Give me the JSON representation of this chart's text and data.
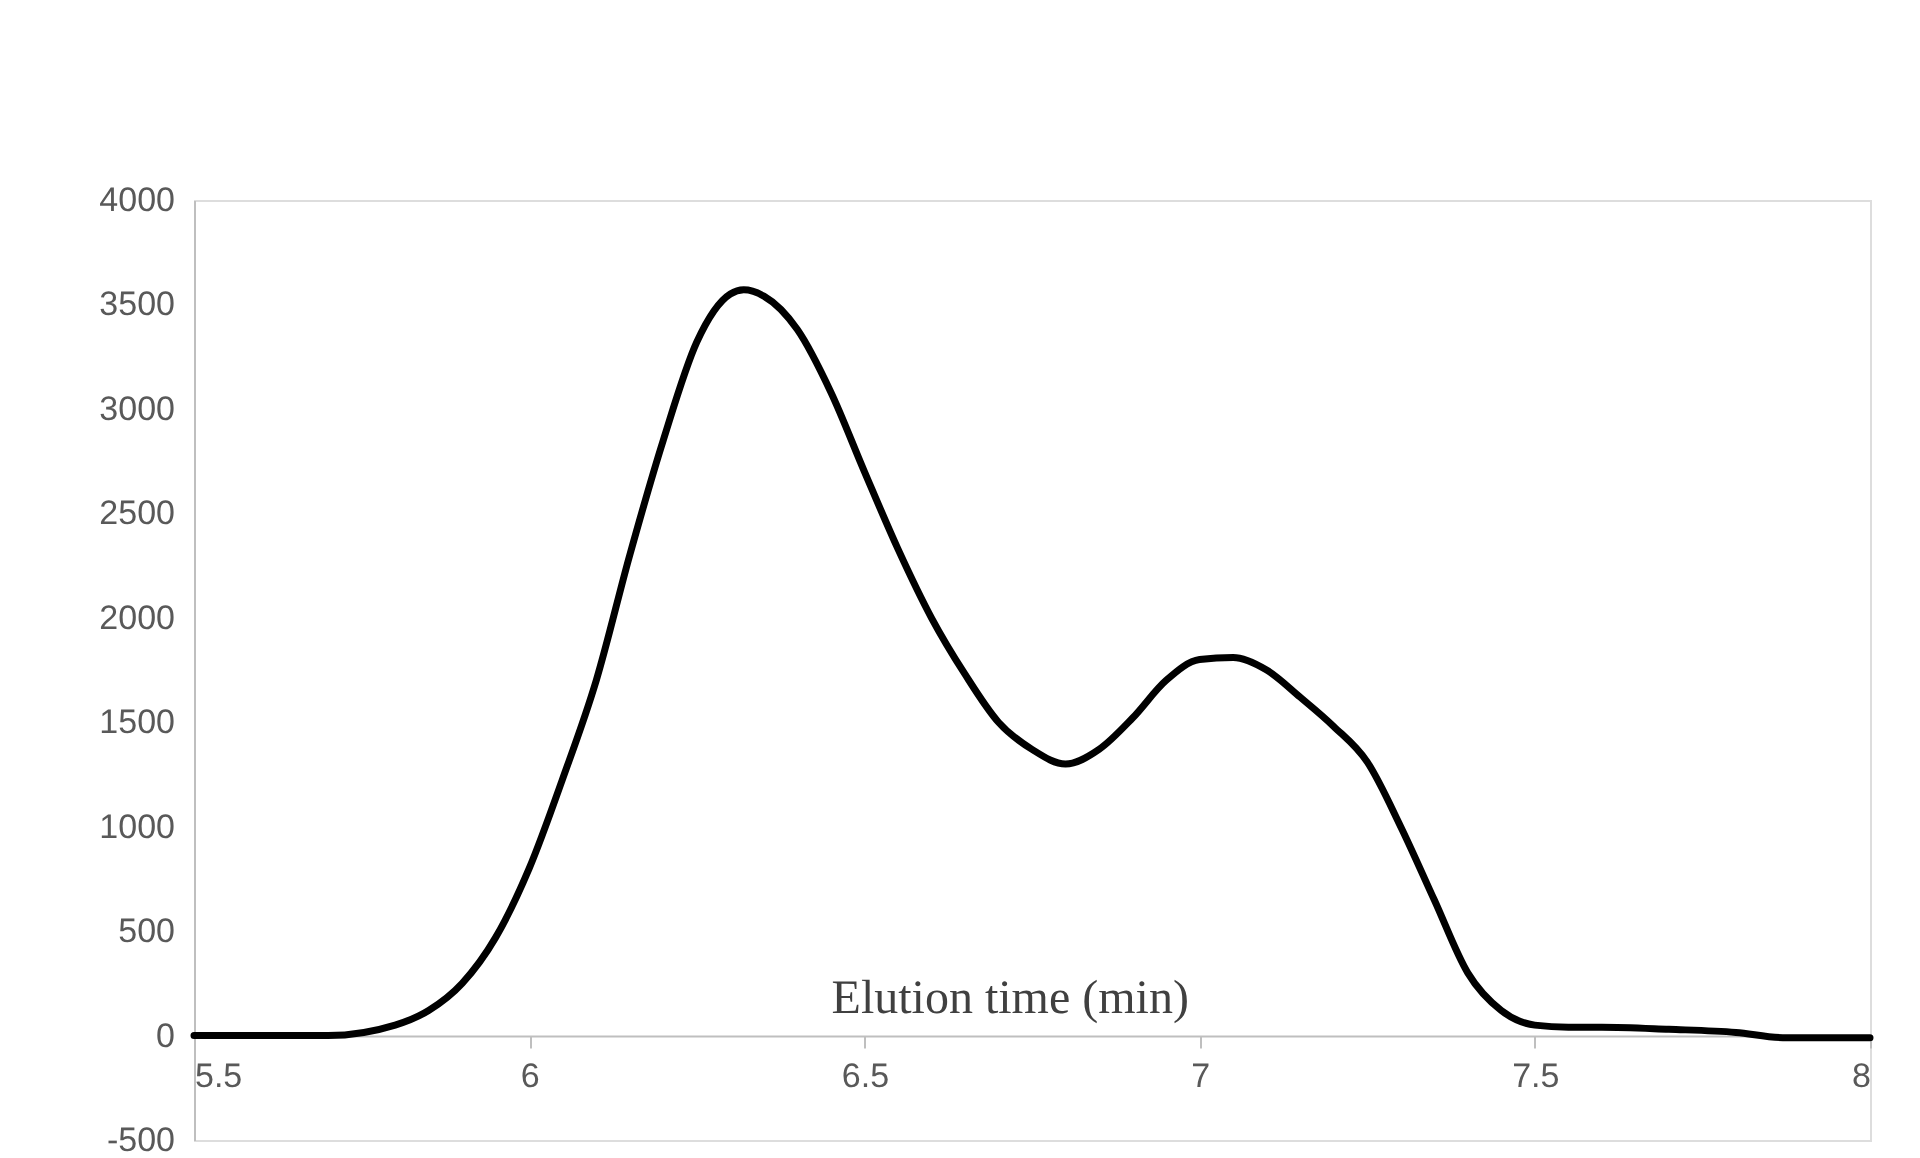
{
  "chart_data": {
    "type": "line",
    "xlabel": "Elution time (min)",
    "x": [
      5.5,
      5.6,
      5.7,
      5.8,
      5.85,
      5.9,
      5.95,
      6.0,
      6.05,
      6.1,
      6.15,
      6.2,
      6.25,
      6.3,
      6.32,
      6.35,
      6.4,
      6.45,
      6.5,
      6.55,
      6.6,
      6.65,
      6.7,
      6.75,
      6.8,
      6.85,
      6.9,
      6.95,
      7.0,
      7.05,
      7.1,
      7.15,
      7.2,
      7.25,
      7.3,
      7.35,
      7.4,
      7.45,
      7.5,
      7.55,
      7.6,
      7.7,
      7.8,
      7.87,
      7.95,
      8.0
    ],
    "series": [
      {
        "color": "#000000",
        "values": [
          0,
          0,
          0,
          50,
          120,
          250,
          470,
          800,
          1230,
          1700,
          2300,
          2850,
          3320,
          3550,
          3570,
          3540,
          3380,
          3080,
          2700,
          2330,
          2000,
          1730,
          1500,
          1370,
          1300,
          1370,
          1520,
          1700,
          1800,
          1810,
          1750,
          1620,
          1480,
          1310,
          1000,
          650,
          300,
          120,
          50,
          40,
          40,
          30,
          15,
          -10,
          -10,
          -10
        ]
      }
    ],
    "xlim": [
      5.5,
      8
    ],
    "xticks": [
      5.5,
      6,
      6.5,
      7,
      7.5,
      8
    ],
    "ylim": [
      -500,
      4000
    ],
    "yticks": [
      -500,
      0,
      500,
      1000,
      1500,
      2000,
      2500,
      3000,
      3500,
      4000
    ],
    "grid": false,
    "marker": "none",
    "line_style": "solid"
  }
}
